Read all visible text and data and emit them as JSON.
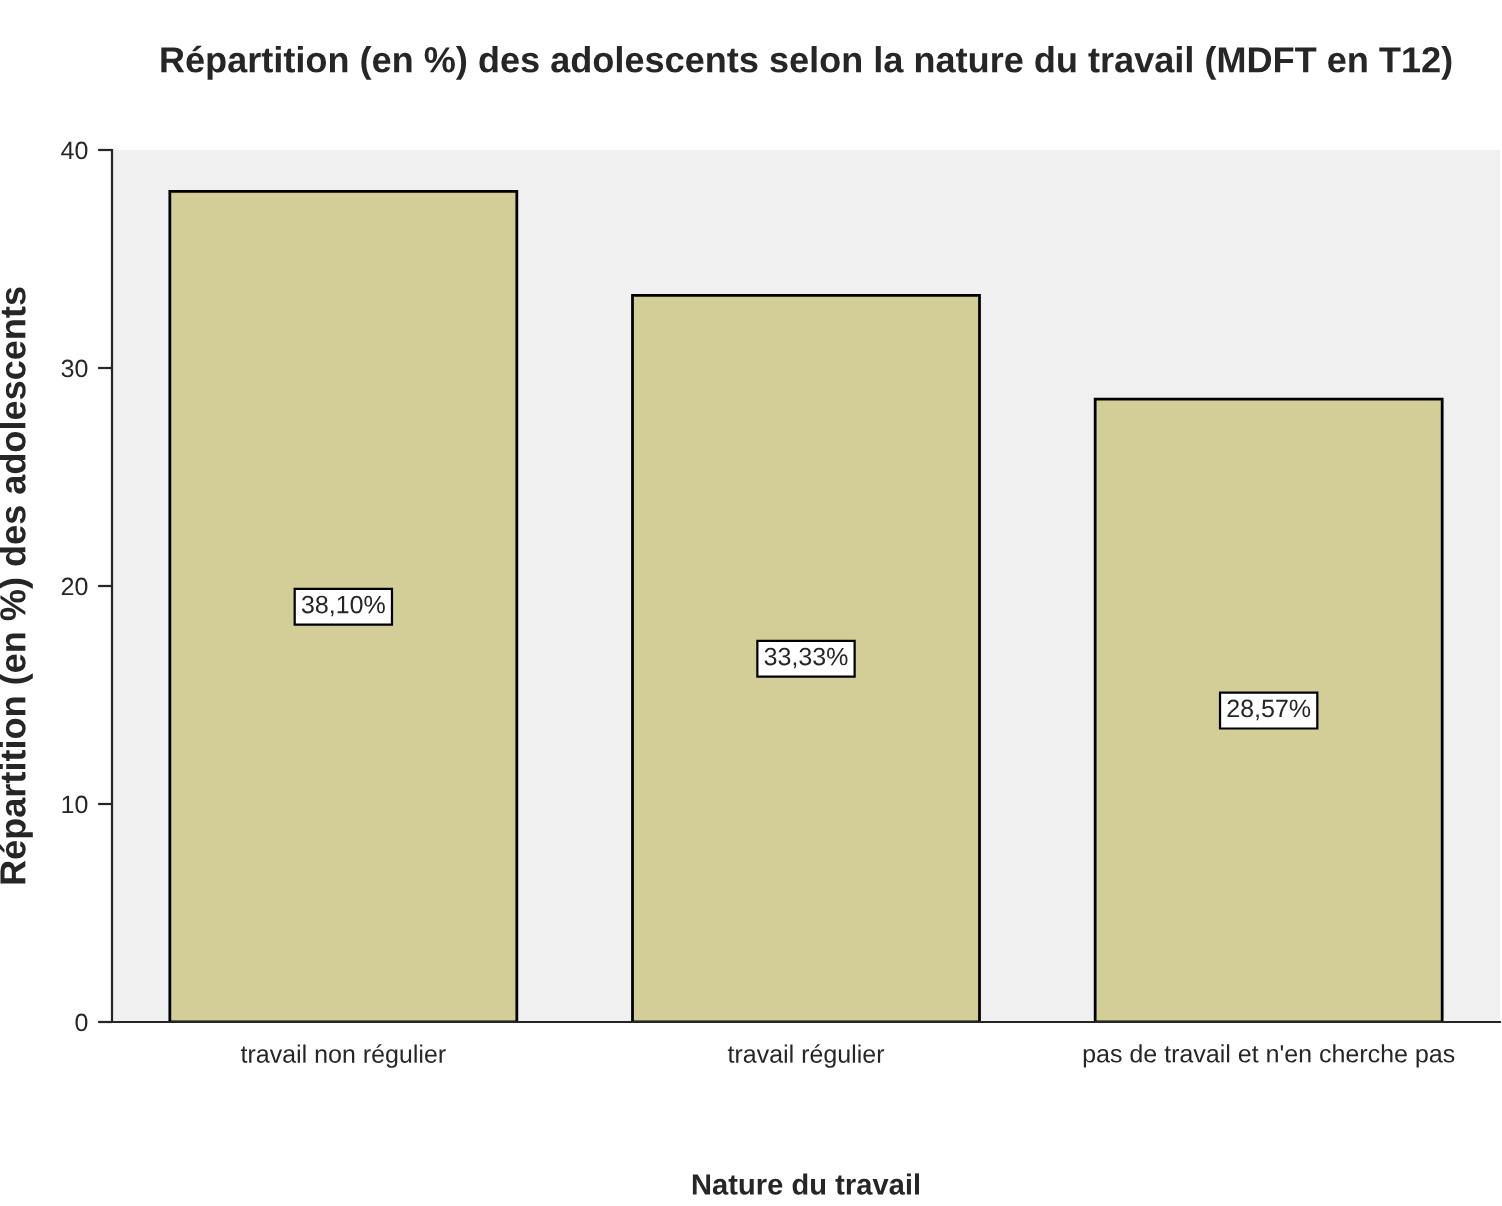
{
  "chart_data": {
    "type": "bar",
    "title": "Répartition (en %) des adolescents selon la nature du travail (MDFT en T12)",
    "xlabel": "Nature du travail",
    "ylabel": "Répartition (en %) des adolescents",
    "categories": [
      "travail non régulier",
      "travail régulier",
      "pas de travail et n'en cherche pas"
    ],
    "values": [
      38.1,
      33.33,
      28.57
    ],
    "value_labels": [
      "38,10%",
      "33,33%",
      "28,57%"
    ],
    "color": "#d3ce98",
    "ylim": [
      0,
      40
    ],
    "yticks": [
      0,
      10,
      20,
      30,
      40
    ],
    "grid": false
  }
}
